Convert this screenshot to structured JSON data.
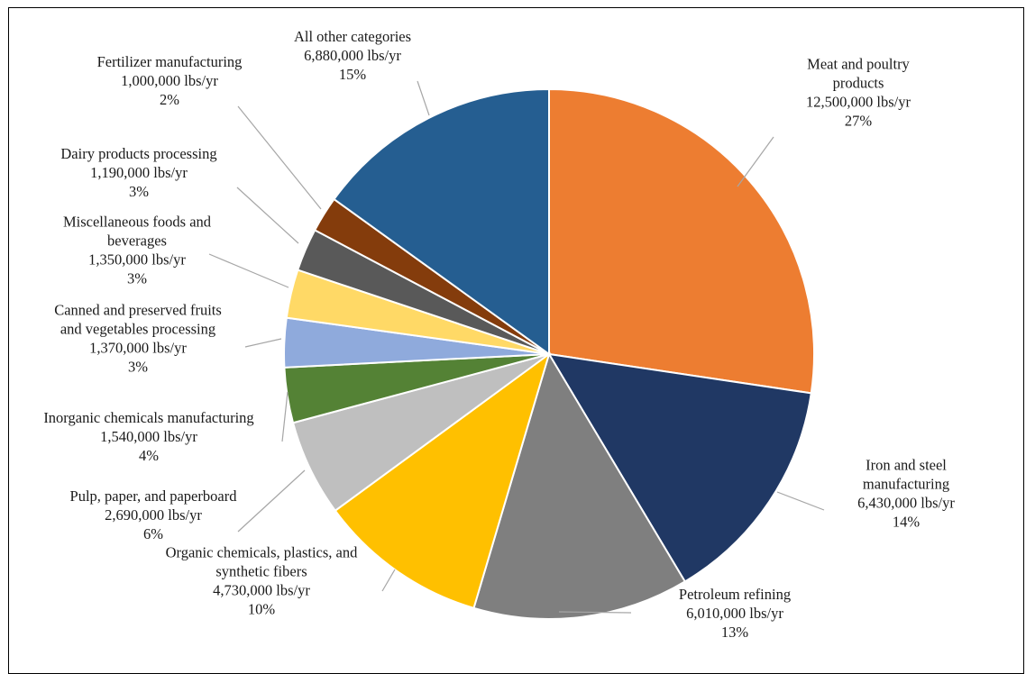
{
  "chart_data": {
    "type": "pie",
    "title": "",
    "legend": "none",
    "start_angle_deg": 0,
    "direction": "clockwise",
    "slices": [
      {
        "name": "Meat and poultry products",
        "label_lines": [
          "Meat and poultry",
          "products"
        ],
        "value": 12500000,
        "value_text": "12,500,000  lbs/yr",
        "percent": "27%",
        "color": "#ED7D31"
      },
      {
        "name": "Iron and steel manufacturing",
        "label_lines": [
          "Iron and steel",
          "manufacturing"
        ],
        "value": 6430000,
        "value_text": "6,430,000  lbs/yr",
        "percent": "14%",
        "color": "#203864"
      },
      {
        "name": "Petroleum refining",
        "label_lines": [
          "Petroleum refining"
        ],
        "value": 6010000,
        "value_text": "6,010,000  lbs/yr",
        "percent": "13%",
        "color": "#7F7F7F"
      },
      {
        "name": "Organic chemicals, plastics, and synthetic fibers",
        "label_lines": [
          "Organic chemicals, plastics, and",
          "synthetic fibers"
        ],
        "value": 4730000,
        "value_text": "4,730,000  lbs/yr",
        "percent": "10%",
        "color": "#FFC000"
      },
      {
        "name": "Pulp, paper, and paperboard",
        "label_lines": [
          "Pulp, paper, and paperboard"
        ],
        "value": 2690000,
        "value_text": "2,690,000  lbs/yr",
        "percent": "6%",
        "color": "#BFBFBF"
      },
      {
        "name": "Inorganic chemicals manufacturing",
        "label_lines": [
          "Inorganic chemicals manufacturing"
        ],
        "value": 1540000,
        "value_text": "1,540,000  lbs/yr",
        "percent": "4%",
        "color": "#548235"
      },
      {
        "name": "Canned and preserved fruits and vegetables processing",
        "label_lines": [
          "Canned and preserved fruits",
          "and vegetables processing"
        ],
        "value": 1370000,
        "value_text": "1,370,000  lbs/yr",
        "percent": "3%",
        "color": "#8FAADC"
      },
      {
        "name": "Miscellaneous foods and beverages",
        "label_lines": [
          "Miscellaneous foods and",
          "beverages"
        ],
        "value": 1350000,
        "value_text": "1,350,000  lbs/yr",
        "percent": "3%",
        "color": "#FFD966"
      },
      {
        "name": "Dairy products processing",
        "label_lines": [
          "Dairy products processing"
        ],
        "value": 1190000,
        "value_text": "1,190,000  lbs/yr",
        "percent": "3%",
        "color": "#595959"
      },
      {
        "name": "Fertilizer manufacturing",
        "label_lines": [
          "Fertilizer  manufacturing"
        ],
        "value": 1000000,
        "value_text": "1,000,000  lbs/yr",
        "percent": "2%",
        "color": "#843C0C"
      },
      {
        "name": "All other categories",
        "label_lines": [
          "All other categories"
        ],
        "value": 6880000,
        "value_text": "6,880,000  lbs/yr",
        "percent": "15%",
        "color": "#255E91"
      }
    ]
  }
}
